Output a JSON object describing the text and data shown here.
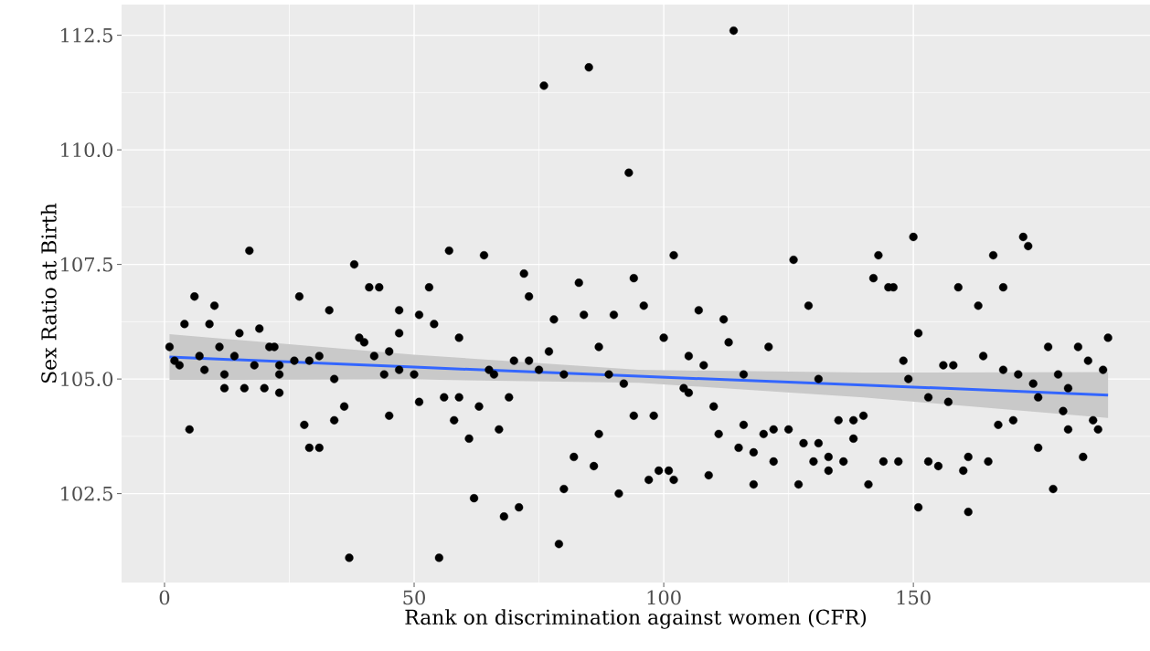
{
  "chart_data": {
    "type": "scatter",
    "xlabel": "Rank on discrimination against women (CFR)",
    "ylabel": "Sex Ratio at Birth",
    "xlim": [
      -8.6,
      197.4
    ],
    "ylim": [
      100.56,
      113.17
    ],
    "xticks": [
      0,
      50,
      100,
      150
    ],
    "yticks": [
      102.5,
      {
        "value": 105,
        "label": "105.0"
      },
      107.5,
      {
        "value": 110,
        "label": "110.0"
      },
      112.5
    ],
    "grid": true,
    "series": [
      {
        "marker": "circle",
        "color": "#000000",
        "x": [
          1,
          2,
          3,
          4,
          5,
          6,
          7,
          8,
          9,
          10,
          11,
          12,
          12,
          14,
          15,
          16,
          17,
          18,
          19,
          20,
          21,
          22,
          23,
          23,
          23,
          26,
          27,
          28,
          29,
          29,
          31,
          31,
          33,
          34,
          34,
          36,
          37,
          38,
          39,
          40,
          41,
          42,
          43,
          44,
          45,
          45,
          47,
          47,
          47,
          50,
          51,
          51,
          53,
          54,
          55,
          56,
          57,
          58,
          59,
          59,
          61,
          62,
          63,
          64,
          65,
          66,
          67,
          68,
          69,
          70,
          71,
          72,
          73,
          73,
          75,
          76,
          77,
          78,
          79,
          80,
          80,
          82,
          83,
          84,
          85,
          86,
          87,
          87,
          89,
          90,
          91,
          92,
          93,
          94,
          94,
          96,
          97,
          98,
          99,
          100,
          101,
          102,
          102,
          104,
          105,
          105,
          107,
          108,
          109,
          110,
          111,
          112,
          113,
          114,
          115,
          116,
          116,
          118,
          118,
          120,
          121,
          122,
          122,
          125,
          126,
          127,
          128,
          129,
          130,
          131,
          131,
          133,
          133,
          135,
          136,
          138,
          138,
          140,
          141,
          142,
          143,
          144,
          145,
          146,
          147,
          148,
          149,
          150,
          151,
          151,
          153,
          153,
          155,
          156,
          157,
          158,
          159,
          160,
          161,
          161,
          163,
          164,
          165,
          166,
          167,
          168,
          168,
          170,
          171,
          172,
          173,
          174,
          175,
          175,
          177,
          178,
          179,
          180,
          181,
          181,
          183,
          184,
          185,
          186,
          187,
          188,
          189
        ],
        "values": [
          105.7,
          105.4,
          105.3,
          106.2,
          103.9,
          106.8,
          105.5,
          105.2,
          106.2,
          106.6,
          105.7,
          105.1,
          104.8,
          105.5,
          106.0,
          104.8,
          107.8,
          105.3,
          106.1,
          104.8,
          105.7,
          105.7,
          105.1,
          104.7,
          105.3,
          105.4,
          106.8,
          104.0,
          105.4,
          103.5,
          103.5,
          105.5,
          106.5,
          105.0,
          104.1,
          104.4,
          101.1,
          107.5,
          105.9,
          105.8,
          107.0,
          105.5,
          107.0,
          105.1,
          105.6,
          104.2,
          106.5,
          106.0,
          105.2,
          105.1,
          106.4,
          104.5,
          107.0,
          106.2,
          101.1,
          104.6,
          107.8,
          104.1,
          105.9,
          104.6,
          103.7,
          102.4,
          104.4,
          107.7,
          105.2,
          105.1,
          103.9,
          102.0,
          104.6,
          105.4,
          102.2,
          107.3,
          106.8,
          105.4,
          105.2,
          111.4,
          105.6,
          106.3,
          101.4,
          105.1,
          102.6,
          103.3,
          107.1,
          106.4,
          111.8,
          103.1,
          105.7,
          103.8,
          105.1,
          106.4,
          102.5,
          104.9,
          109.5,
          107.2,
          104.2,
          106.6,
          102.8,
          104.2,
          103.0,
          105.9,
          103.0,
          107.7,
          102.8,
          104.8,
          105.5,
          104.7,
          106.5,
          105.3,
          102.9,
          104.4,
          103.8,
          106.3,
          105.8,
          112.6,
          103.5,
          105.1,
          104.0,
          103.4,
          102.7,
          103.8,
          105.7,
          103.9,
          103.2,
          103.9,
          107.6,
          102.7,
          103.6,
          106.6,
          103.2,
          105.0,
          103.6,
          103.3,
          103.0,
          104.1,
          103.2,
          104.1,
          103.7,
          104.2,
          102.7,
          107.2,
          107.7,
          103.2,
          107.0,
          107.0,
          103.2,
          105.4,
          105.0,
          108.1,
          106.0,
          102.2,
          104.6,
          103.2,
          103.1,
          105.3,
          104.5,
          105.3,
          107.0,
          103.0,
          102.1,
          103.3,
          106.6,
          105.5,
          103.2,
          107.7,
          104.0,
          107.0,
          105.2,
          104.1,
          105.1,
          108.1,
          107.9,
          104.9,
          104.6,
          103.5,
          105.7,
          102.6,
          105.1,
          104.3,
          104.8,
          103.9,
          105.7,
          103.3,
          105.4,
          104.1,
          103.9,
          105.2,
          105.9
        ]
      },
      {
        "type": "line",
        "color": "#3366ff",
        "x": [
          1,
          50,
          95,
          140,
          189
        ],
        "values": [
          105.48,
          105.26,
          105.06,
          104.87,
          104.65
        ],
        "lower": [
          104.98,
          104.99,
          104.92,
          104.6,
          104.15
        ],
        "upper": [
          105.98,
          105.53,
          105.2,
          105.14,
          105.15
        ]
      }
    ]
  }
}
